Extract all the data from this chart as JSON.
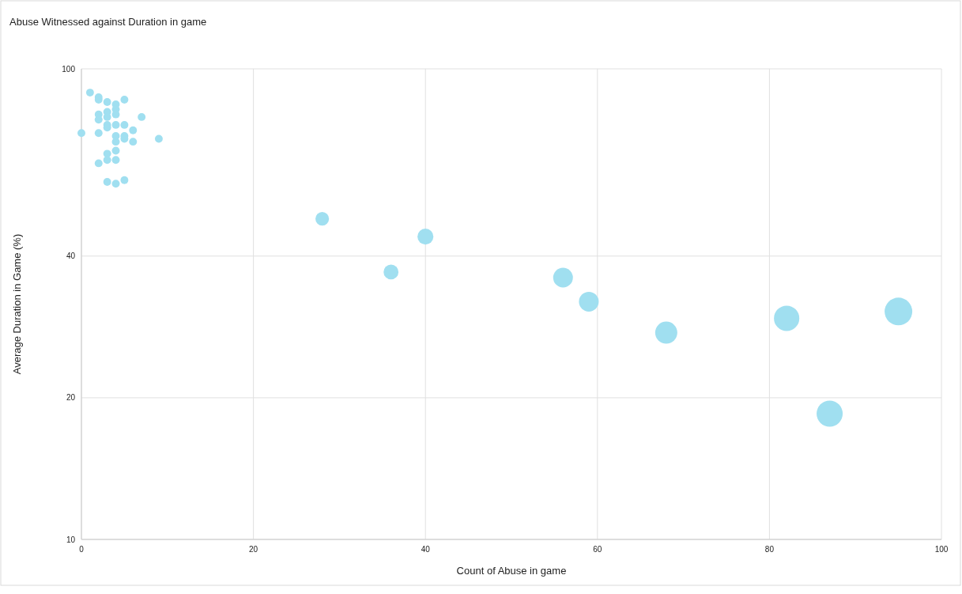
{
  "chart_data": {
    "type": "bubble",
    "title": "Abuse Witnessed against Duration in game",
    "xlabel": "Count of Abuse in game",
    "ylabel": "Average Duration in Game (%)",
    "log": "y",
    "grid": true,
    "xlim": [
      0,
      100
    ],
    "xticks": [
      0,
      20,
      40,
      60,
      80,
      100
    ],
    "ylim": [
      10,
      100
    ],
    "yticks": [
      10,
      20,
      40,
      100
    ],
    "series": [
      {
        "color": "#a0dff0",
        "x": [
          0,
          1,
          2,
          2,
          3,
          4,
          4,
          5,
          2,
          2,
          3,
          3,
          3,
          3,
          4,
          4,
          5,
          6,
          7,
          2,
          4,
          4,
          5,
          5,
          6,
          9,
          3,
          4,
          4,
          3,
          2,
          3,
          4,
          5,
          28,
          36,
          40,
          56,
          59,
          68,
          82,
          87,
          95
        ],
        "values": [
          73,
          89,
          87,
          86,
          85,
          84,
          82,
          86,
          80,
          78,
          81,
          79,
          76,
          75,
          80,
          76,
          76,
          74,
          79,
          73,
          72,
          70,
          72,
          71,
          70,
          71,
          66,
          67,
          64,
          64,
          63,
          57.5,
          57,
          58,
          48,
          37,
          44,
          36,
          32,
          27.5,
          29.5,
          18.5,
          30.5
        ],
        "sizes": [
          0.08,
          0.08,
          0.08,
          0.08,
          0.08,
          0.08,
          0.08,
          0.08,
          0.08,
          0.08,
          0.08,
          0.08,
          0.08,
          0.08,
          0.08,
          0.08,
          0.08,
          0.08,
          0.08,
          0.08,
          0.08,
          0.08,
          0.08,
          0.08,
          0.08,
          0.08,
          0.08,
          0.08,
          0.08,
          0.08,
          0.08,
          0.08,
          0.08,
          0.08,
          0.24,
          0.29,
          0.33,
          0.51,
          0.51,
          0.64,
          0.84,
          0.89,
          1
        ]
      }
    ]
  }
}
